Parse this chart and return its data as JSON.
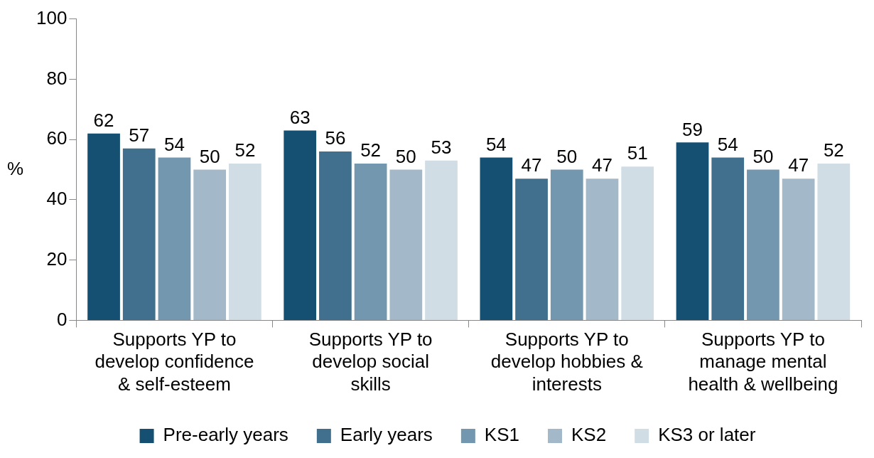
{
  "chart_data": {
    "type": "bar",
    "ylabel": "%",
    "categories": [
      "Supports YP to develop confidence & self-esteem",
      "Supports YP to develop social skills",
      "Supports YP to develop hobbies & interests",
      "Supports YP to manage mental health & wellbeing"
    ],
    "series": [
      {
        "name": "Pre-early years",
        "color": "#154f72",
        "values": [
          62,
          63,
          54,
          59
        ]
      },
      {
        "name": "Early years",
        "color": "#41708f",
        "values": [
          57,
          56,
          47,
          54
        ]
      },
      {
        "name": "KS1",
        "color": "#7397ae",
        "values": [
          54,
          52,
          50,
          50
        ]
      },
      {
        "name": "KS2",
        "color": "#a3b9c9",
        "values": [
          50,
          50,
          47,
          47
        ]
      },
      {
        "name": "KS3 or later",
        "color": "#d0dde5",
        "values": [
          52,
          53,
          51,
          52
        ]
      }
    ],
    "ylim": [
      0,
      100
    ],
    "yticks": [
      0,
      20,
      40,
      60,
      80,
      100
    ],
    "grid": false,
    "legend": "bottom",
    "data_labels": true
  }
}
